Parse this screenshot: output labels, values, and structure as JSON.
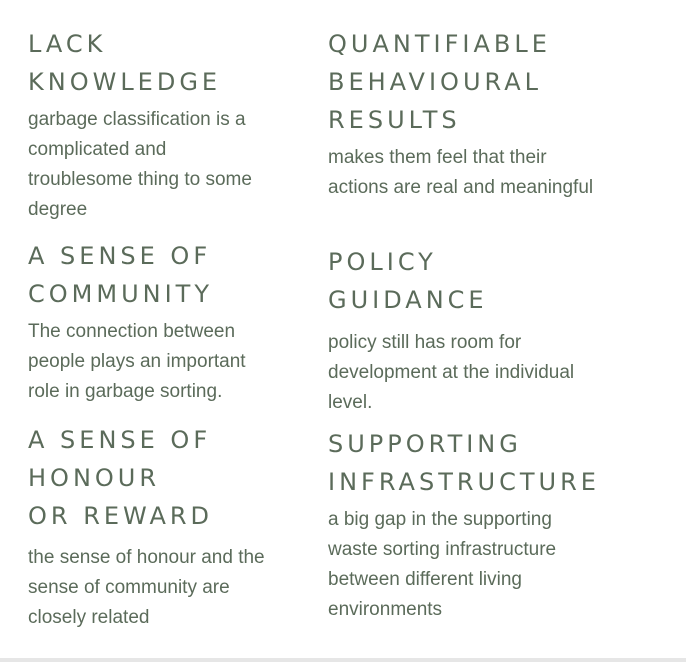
{
  "theme": {
    "text_color": "#5b6b5a",
    "background": "#ffffff"
  },
  "cards": [
    {
      "title": "LACK\nKNOWLEDGE",
      "description": "garbage classification is a\ncomplicated and\ntroublesome thing to some\ndegree"
    },
    {
      "title": "QUANTIFIABLE\nBEHAVIOURAL\nRESULTS",
      "description": "makes them feel that their\nactions are real and meaningful"
    },
    {
      "title": "A SENSE OF\nCOMMUNITY",
      "description": "The connection between\npeople plays an important\nrole in garbage sorting."
    },
    {
      "title": "POLICY\nGUIDANCE",
      "description": "policy still has room for\ndevelopment at the individual\nlevel."
    },
    {
      "title": "A SENSE OF\nHONOUR\nOR REWARD",
      "description": "the sense of honour and the\nsense of community are\nclosely related"
    },
    {
      "title": "SUPPORTING\nINFRASTRUCTURE",
      "description": "a big gap in the supporting\nwaste sorting infrastructure\nbetween different living\nenvironments"
    }
  ]
}
